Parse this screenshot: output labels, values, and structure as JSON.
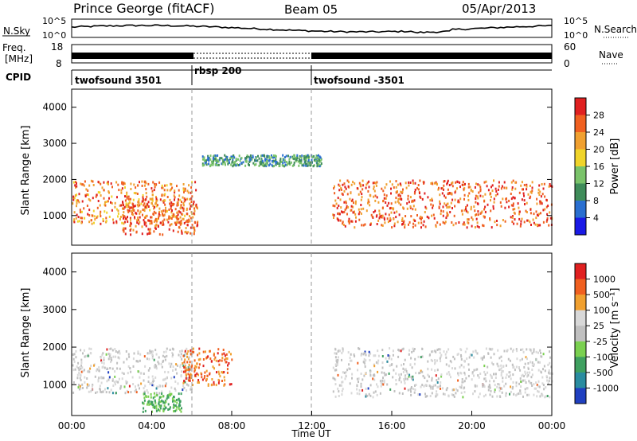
{
  "header": {
    "station": "Prince George (fitACF)",
    "beam": "Beam 05",
    "date": "05/Apr/2013"
  },
  "noise_panel": {
    "left_label": "N.Sky",
    "left_ticks": [
      "10^5",
      "10^0"
    ],
    "right_ticks": [
      "10^5",
      "10^0"
    ],
    "right_label": "N.Search"
  },
  "freq_panel": {
    "left_label_1": "Freq.",
    "left_label_2": "[MHz]",
    "left_ticks": [
      "18",
      "8"
    ],
    "right_ticks": [
      "60",
      "0"
    ],
    "right_label": "Nave"
  },
  "cpid_panel": {
    "label": "CPID",
    "modes": [
      {
        "name": "twofsound 3501",
        "start": 0,
        "end": 6
      },
      {
        "name": "rbsp 200",
        "start": 6,
        "end": 12
      },
      {
        "name": "twofsound -3501",
        "start": 12,
        "end": 24
      }
    ]
  },
  "colors": {
    "power": [
      "#1a1ae6",
      "#2a6fd0",
      "#3f8c5a",
      "#7ac36a",
      "#f0d42a",
      "#f0a030",
      "#f06020",
      "#e02020"
    ],
    "velocity": [
      "#2040c0",
      "#2a8ca0",
      "#3fa060",
      "#7ad050",
      "#c0c0c0",
      "#d8d8d8",
      "#f0a030",
      "#f06020",
      "#e02020"
    ]
  },
  "chart_data": [
    {
      "type": "heatmap",
      "title": "",
      "xlabel": "",
      "ylabel": "Slant Range [km]",
      "xlim": [
        0,
        24
      ],
      "ylim": [
        180,
        4500
      ],
      "yticks": [
        "1000",
        "2000",
        "3000",
        "4000"
      ],
      "xticks": [],
      "colorbar": {
        "label": "Power [dB]",
        "ticks": [
          "28",
          "24",
          "20",
          "16",
          "12",
          "8",
          "4"
        ],
        "range": [
          0,
          32
        ]
      },
      "regions": [
        {
          "name": "main band",
          "x": [
            0,
            6.2
          ],
          "range_km": [
            800,
            2000
          ],
          "power_db": 24
        },
        {
          "name": "descending echo",
          "x": [
            2.5,
            6.3
          ],
          "range_km": [
            500,
            1500
          ],
          "power_db": 26
        },
        {
          "name": "upper band",
          "x": [
            6.5,
            12.5
          ],
          "range_km": [
            2400,
            2700
          ],
          "power_db": 10
        },
        {
          "name": "late band",
          "x": [
            13,
            24
          ],
          "range_km": [
            700,
            2000
          ],
          "power_db": 26
        }
      ]
    },
    {
      "type": "heatmap",
      "title": "",
      "xlabel": "Time UT",
      "ylabel": "Slant Range [km]",
      "xlim": [
        0,
        24
      ],
      "ylim": [
        180,
        4500
      ],
      "yticks": [
        "1000",
        "2000",
        "3000",
        "4000"
      ],
      "xticks": [
        "00:00",
        "04:00",
        "08:00",
        "12:00",
        "16:00",
        "20:00",
        "00:00"
      ],
      "colorbar": {
        "label": "Velocity [m s⁻¹]",
        "ticks": [
          "1000",
          "500",
          "100",
          "25",
          "-25",
          "-100",
          "-500",
          "-1000"
        ]
      },
      "regions": [
        {
          "name": "ground scatter early",
          "x": [
            0,
            6
          ],
          "range_km": [
            800,
            2000
          ],
          "velocity": 0
        },
        {
          "name": "ionospheric patch",
          "x": [
            5.5,
            8
          ],
          "range_km": [
            1000,
            2000
          ],
          "velocity": -500
        },
        {
          "name": "low patch",
          "x": [
            3.5,
            5.5
          ],
          "range_km": [
            300,
            800
          ],
          "velocity": 100
        },
        {
          "name": "ground scatter late",
          "x": [
            13,
            24
          ],
          "range_km": [
            700,
            2000
          ],
          "velocity": 0
        }
      ]
    }
  ]
}
